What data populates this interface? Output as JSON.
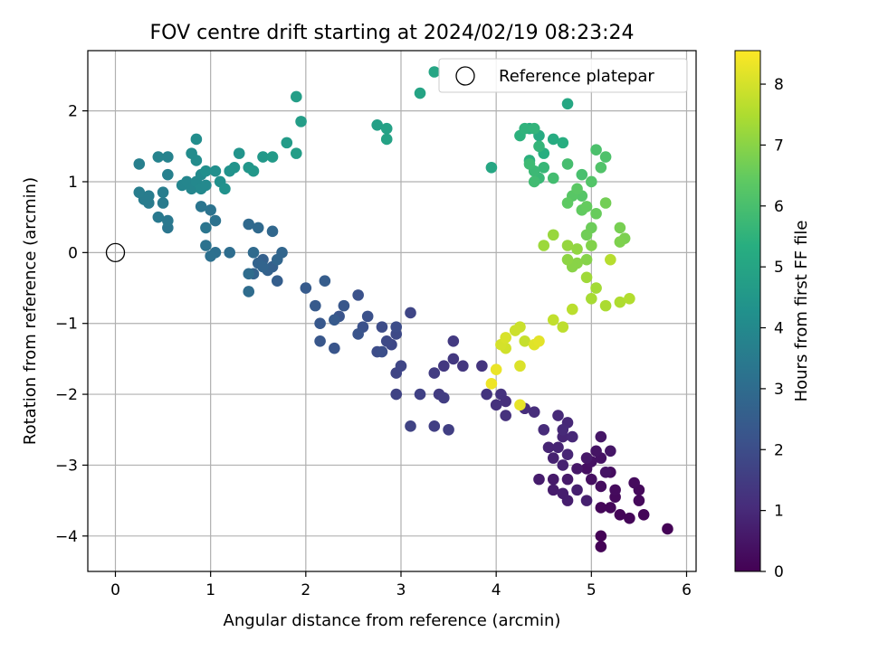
{
  "chart_data": {
    "type": "scatter",
    "title": "FOV centre drift starting at 2024/02/19 08:23:24",
    "xlabel": "Angular distance from reference (arcmin)",
    "ylabel": "Rotation from reference (arcmin)",
    "xlim": [
      -0.29,
      6.1
    ],
    "ylim": [
      -4.5,
      2.85
    ],
    "x_ticks": [
      0,
      1,
      2,
      3,
      4,
      5,
      6
    ],
    "y_ticks": [
      -4,
      -3,
      -2,
      -1,
      0,
      1,
      2
    ],
    "grid": true,
    "legend": {
      "position": "top-right",
      "entries": [
        "Reference platepar"
      ]
    },
    "reference_point": {
      "name": "Reference platepar",
      "x": 0,
      "y": 0
    },
    "colorbar": {
      "label": "Hours from first FF file",
      "range": [
        0,
        8.55
      ],
      "ticks": [
        0,
        1,
        2,
        3,
        4,
        5,
        6,
        7,
        8
      ],
      "colormap": "viridis"
    },
    "points": [
      [
        5.8,
        -3.9,
        0.05
      ],
      [
        5.1,
        -4.0,
        0.05
      ],
      [
        5.1,
        -4.15,
        0.05
      ],
      [
        5.55,
        -3.7,
        0.1
      ],
      [
        5.4,
        -3.75,
        0.1
      ],
      [
        5.3,
        -3.7,
        0.1
      ],
      [
        5.2,
        -3.6,
        0.15
      ],
      [
        5.1,
        -3.6,
        0.15
      ],
      [
        5.25,
        -3.45,
        0.2
      ],
      [
        5.5,
        -3.5,
        0.2
      ],
      [
        5.5,
        -3.35,
        0.2
      ],
      [
        5.45,
        -3.25,
        0.25
      ],
      [
        5.25,
        -3.35,
        0.25
      ],
      [
        5.1,
        -3.3,
        0.3
      ],
      [
        5.2,
        -3.1,
        0.3
      ],
      [
        5.0,
        -3.2,
        0.35
      ],
      [
        4.95,
        -3.05,
        0.35
      ],
      [
        5.0,
        -2.95,
        0.4
      ],
      [
        5.1,
        -2.9,
        0.4
      ],
      [
        5.15,
        -3.1,
        0.45
      ],
      [
        5.05,
        -2.8,
        0.45
      ],
      [
        5.2,
        -2.8,
        0.5
      ],
      [
        5.1,
        -2.6,
        0.5
      ],
      [
        4.95,
        -2.9,
        0.55
      ],
      [
        4.85,
        -3.05,
        0.55
      ],
      [
        4.75,
        -3.2,
        0.6
      ],
      [
        4.6,
        -3.2,
        0.6
      ],
      [
        4.45,
        -3.2,
        0.65
      ],
      [
        4.6,
        -3.35,
        0.65
      ],
      [
        4.7,
        -3.4,
        0.7
      ],
      [
        4.75,
        -3.5,
        0.7
      ],
      [
        4.95,
        -3.5,
        0.75
      ],
      [
        4.85,
        -3.35,
        0.75
      ],
      [
        4.7,
        -3.0,
        0.8
      ],
      [
        4.6,
        -2.9,
        0.8
      ],
      [
        4.55,
        -2.75,
        0.85
      ],
      [
        4.65,
        -2.75,
        0.85
      ],
      [
        4.75,
        -2.85,
        0.9
      ],
      [
        4.7,
        -2.6,
        0.9
      ],
      [
        4.8,
        -2.6,
        0.95
      ],
      [
        4.75,
        -2.4,
        0.95
      ],
      [
        4.65,
        -2.3,
        1.0
      ],
      [
        4.7,
        -2.5,
        1.0
      ],
      [
        4.5,
        -2.5,
        1.05
      ],
      [
        4.4,
        -2.25,
        1.1
      ],
      [
        4.3,
        -2.2,
        1.1
      ],
      [
        4.1,
        -2.1,
        1.15
      ],
      [
        4.1,
        -2.3,
        1.2
      ],
      [
        4.0,
        -2.15,
        1.2
      ],
      [
        4.05,
        -2.0,
        1.25
      ],
      [
        3.9,
        -2.0,
        1.3
      ],
      [
        3.85,
        -1.6,
        1.3
      ],
      [
        3.65,
        -1.6,
        1.35
      ],
      [
        3.55,
        -1.5,
        1.4
      ],
      [
        3.45,
        -1.6,
        1.4
      ],
      [
        3.55,
        -1.25,
        1.45
      ],
      [
        3.35,
        -1.7,
        1.5
      ],
      [
        3.4,
        -2.0,
        1.5
      ],
      [
        3.45,
        -2.05,
        1.55
      ],
      [
        3.5,
        -2.5,
        1.6
      ],
      [
        3.35,
        -2.45,
        1.6
      ],
      [
        3.2,
        -2.0,
        1.65
      ],
      [
        3.1,
        -2.45,
        1.7
      ],
      [
        2.95,
        -2.0,
        1.7
      ],
      [
        2.95,
        -1.7,
        1.75
      ],
      [
        3.0,
        -1.6,
        1.8
      ],
      [
        3.1,
        -0.85,
        1.8
      ],
      [
        2.9,
        -1.3,
        1.85
      ],
      [
        2.95,
        -1.15,
        1.9
      ],
      [
        2.85,
        -1.25,
        1.9
      ],
      [
        2.8,
        -1.05,
        1.95
      ],
      [
        2.95,
        -1.05,
        2.0
      ],
      [
        2.75,
        -1.4,
        2.0
      ],
      [
        2.8,
        -1.4,
        2.05
      ],
      [
        2.6,
        -1.05,
        2.1
      ],
      [
        2.65,
        -0.9,
        2.1
      ],
      [
        2.55,
        -0.6,
        2.15
      ],
      [
        2.55,
        -1.15,
        2.2
      ],
      [
        2.35,
        -0.9,
        2.2
      ],
      [
        2.3,
        -1.35,
        2.25
      ],
      [
        2.4,
        -0.75,
        2.3
      ],
      [
        2.15,
        -1.25,
        2.3
      ],
      [
        2.15,
        -1.0,
        2.35
      ],
      [
        2.3,
        -0.95,
        2.4
      ],
      [
        2.1,
        -0.75,
        2.4
      ],
      [
        2.0,
        -0.5,
        2.45
      ],
      [
        2.2,
        -0.4,
        2.5
      ],
      [
        1.7,
        -0.4,
        2.55
      ],
      [
        1.65,
        -0.2,
        2.6
      ],
      [
        1.55,
        -0.1,
        2.6
      ],
      [
        1.6,
        -0.25,
        2.65
      ],
      [
        1.45,
        -0.3,
        2.7
      ],
      [
        1.5,
        -0.15,
        2.7
      ],
      [
        1.55,
        -0.2,
        2.75
      ],
      [
        1.7,
        -0.1,
        2.8
      ],
      [
        1.75,
        0.0,
        2.8
      ],
      [
        1.65,
        0.3,
        2.85
      ],
      [
        1.5,
        0.35,
        2.9
      ],
      [
        1.4,
        0.4,
        2.9
      ],
      [
        1.45,
        0.0,
        2.95
      ],
      [
        1.4,
        -0.3,
        3.0
      ],
      [
        1.4,
        -0.55,
        3.0
      ],
      [
        1.2,
        0.0,
        3.05
      ],
      [
        1.05,
        0.0,
        3.1
      ],
      [
        1.0,
        -0.05,
        3.15
      ],
      [
        0.95,
        0.1,
        3.2
      ],
      [
        1.05,
        0.45,
        3.2
      ],
      [
        1.0,
        0.6,
        3.25
      ],
      [
        0.95,
        0.35,
        3.3
      ],
      [
        0.9,
        0.65,
        3.3
      ],
      [
        0.55,
        0.35,
        3.35
      ],
      [
        0.55,
        0.45,
        3.4
      ],
      [
        0.45,
        0.5,
        3.45
      ],
      [
        0.5,
        0.7,
        3.5
      ],
      [
        0.35,
        0.7,
        3.5
      ],
      [
        0.35,
        0.8,
        3.55
      ],
      [
        0.3,
        0.75,
        3.55
      ],
      [
        0.25,
        0.85,
        3.6
      ],
      [
        0.5,
        0.85,
        3.6
      ],
      [
        0.25,
        1.25,
        3.65
      ],
      [
        0.55,
        1.1,
        3.7
      ],
      [
        0.55,
        1.35,
        3.75
      ],
      [
        0.45,
        1.35,
        3.8
      ],
      [
        0.7,
        0.95,
        3.85
      ],
      [
        0.75,
        1.0,
        3.9
      ],
      [
        0.8,
        0.9,
        3.9
      ],
      [
        0.85,
        1.0,
        3.95
      ],
      [
        0.9,
        0.9,
        4.0
      ],
      [
        0.95,
        0.95,
        4.0
      ],
      [
        0.9,
        1.1,
        4.05
      ],
      [
        0.85,
        1.3,
        4.1
      ],
      [
        0.8,
        1.4,
        4.1
      ],
      [
        0.85,
        1.6,
        4.15
      ],
      [
        0.95,
        1.15,
        4.2
      ],
      [
        1.05,
        1.15,
        4.2
      ],
      [
        1.1,
        1.0,
        4.25
      ],
      [
        1.15,
        0.9,
        4.3
      ],
      [
        1.2,
        1.15,
        4.3
      ],
      [
        1.25,
        1.2,
        4.35
      ],
      [
        1.3,
        1.4,
        4.4
      ],
      [
        1.4,
        1.2,
        4.45
      ],
      [
        1.45,
        1.15,
        4.5
      ],
      [
        1.55,
        1.35,
        4.55
      ],
      [
        1.65,
        1.35,
        4.6
      ],
      [
        1.8,
        1.55,
        4.65
      ],
      [
        1.9,
        1.4,
        4.7
      ],
      [
        1.95,
        1.85,
        4.7
      ],
      [
        1.9,
        2.2,
        4.75
      ],
      [
        2.75,
        1.8,
        4.8
      ],
      [
        2.85,
        1.75,
        4.85
      ],
      [
        2.85,
        1.6,
        4.9
      ],
      [
        3.2,
        2.25,
        4.95
      ],
      [
        3.35,
        2.55,
        5.0
      ],
      [
        3.95,
        1.2,
        5.05
      ],
      [
        4.75,
        2.1,
        5.1
      ],
      [
        4.35,
        1.75,
        5.15
      ],
      [
        4.45,
        1.65,
        5.2
      ],
      [
        4.6,
        1.6,
        5.25
      ],
      [
        4.7,
        1.55,
        5.3
      ],
      [
        4.5,
        1.4,
        5.35
      ],
      [
        4.35,
        1.3,
        5.4
      ],
      [
        4.25,
        1.65,
        5.45
      ],
      [
        4.3,
        1.75,
        5.5
      ],
      [
        4.4,
        1.75,
        5.55
      ],
      [
        4.45,
        1.5,
        5.6
      ],
      [
        4.5,
        1.2,
        5.65
      ],
      [
        4.45,
        1.05,
        5.7
      ],
      [
        4.4,
        1.15,
        5.75
      ],
      [
        4.35,
        1.25,
        5.8
      ],
      [
        4.4,
        1.0,
        5.85
      ],
      [
        4.6,
        1.05,
        5.9
      ],
      [
        4.75,
        1.25,
        5.95
      ],
      [
        4.9,
        1.1,
        6.0
      ],
      [
        5.05,
        1.45,
        6.05
      ],
      [
        5.15,
        1.35,
        6.1
      ],
      [
        5.1,
        1.2,
        6.15
      ],
      [
        5.0,
        1.0,
        6.2
      ],
      [
        4.9,
        0.8,
        6.25
      ],
      [
        4.8,
        0.8,
        6.3
      ],
      [
        4.85,
        0.9,
        6.35
      ],
      [
        4.75,
        0.7,
        6.4
      ],
      [
        4.9,
        0.6,
        6.45
      ],
      [
        4.95,
        0.65,
        6.5
      ],
      [
        5.05,
        0.55,
        6.55
      ],
      [
        5.0,
        0.35,
        6.6
      ],
      [
        4.95,
        0.25,
        6.65
      ],
      [
        5.15,
        0.7,
        6.7
      ],
      [
        5.3,
        0.35,
        6.75
      ],
      [
        5.35,
        0.2,
        6.8
      ],
      [
        5.3,
        0.15,
        6.85
      ],
      [
        5.0,
        0.1,
        6.9
      ],
      [
        4.95,
        -0.1,
        6.95
      ],
      [
        4.85,
        -0.15,
        7.0
      ],
      [
        4.8,
        -0.2,
        7.0
      ],
      [
        4.75,
        -0.1,
        7.05
      ],
      [
        4.85,
        0.05,
        7.1
      ],
      [
        4.75,
        0.1,
        7.15
      ],
      [
        4.6,
        0.25,
        7.2
      ],
      [
        4.5,
        0.1,
        7.25
      ],
      [
        4.95,
        -0.35,
        7.3
      ],
      [
        5.05,
        -0.5,
        7.35
      ],
      [
        5.0,
        -0.65,
        7.4
      ],
      [
        5.15,
        -0.75,
        7.45
      ],
      [
        5.3,
        -0.7,
        7.5
      ],
      [
        5.4,
        -0.65,
        7.55
      ],
      [
        5.2,
        -0.1,
        7.6
      ],
      [
        4.8,
        -0.8,
        7.65
      ],
      [
        4.7,
        -1.05,
        7.7
      ],
      [
        4.6,
        -0.95,
        7.75
      ],
      [
        4.3,
        -1.25,
        7.8
      ],
      [
        4.25,
        -1.05,
        7.85
      ],
      [
        4.2,
        -1.1,
        7.9
      ],
      [
        4.1,
        -1.35,
        7.95
      ],
      [
        4.05,
        -1.3,
        8.0
      ],
      [
        4.1,
        -1.2,
        8.05
      ],
      [
        4.25,
        -1.6,
        8.1
      ],
      [
        4.4,
        -1.3,
        8.15
      ],
      [
        4.45,
        -1.25,
        8.2
      ],
      [
        4.25,
        -2.15,
        8.25
      ],
      [
        4.0,
        -1.65,
        8.3
      ],
      [
        3.95,
        -1.85,
        8.35
      ]
    ]
  }
}
